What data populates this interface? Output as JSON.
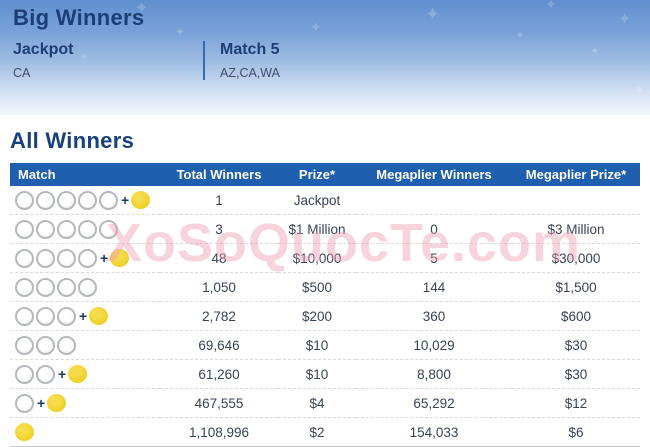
{
  "hero": {
    "title": "Big Winners",
    "cards": [
      {
        "label": "Jackpot",
        "value": "CA"
      },
      {
        "label": "Match 5",
        "value": "AZ,CA,WA"
      }
    ]
  },
  "all_winners": {
    "title": "All Winners",
    "columns": [
      "Match",
      "Total Winners",
      "Prize*",
      "Megaplier Winners",
      "Megaplier Prize*"
    ],
    "rows": [
      {
        "white_balls": 5,
        "mega_ball": true,
        "total_winners": "1",
        "prize": "Jackpot",
        "megaplier_winners": "",
        "megaplier_prize": ""
      },
      {
        "white_balls": 5,
        "mega_ball": false,
        "total_winners": "3",
        "prize": "$1 Million",
        "megaplier_winners": "0",
        "megaplier_prize": "$3 Million"
      },
      {
        "white_balls": 4,
        "mega_ball": true,
        "total_winners": "48",
        "prize": "$10,000",
        "megaplier_winners": "5",
        "megaplier_prize": "$30,000"
      },
      {
        "white_balls": 4,
        "mega_ball": false,
        "total_winners": "1,050",
        "prize": "$500",
        "megaplier_winners": "144",
        "megaplier_prize": "$1,500"
      },
      {
        "white_balls": 3,
        "mega_ball": true,
        "total_winners": "2,782",
        "prize": "$200",
        "megaplier_winners": "360",
        "megaplier_prize": "$600"
      },
      {
        "white_balls": 3,
        "mega_ball": false,
        "total_winners": "69,646",
        "prize": "$10",
        "megaplier_winners": "10,029",
        "megaplier_prize": "$30"
      },
      {
        "white_balls": 2,
        "mega_ball": true,
        "total_winners": "61,260",
        "prize": "$10",
        "megaplier_winners": "8,800",
        "megaplier_prize": "$30"
      },
      {
        "white_balls": 1,
        "mega_ball": true,
        "total_winners": "467,555",
        "prize": "$4",
        "megaplier_winners": "65,292",
        "megaplier_prize": "$12"
      },
      {
        "white_balls": 0,
        "mega_ball": true,
        "total_winners": "1,108,996",
        "prize": "$2",
        "megaplier_winners": "154,033",
        "megaplier_prize": "$6"
      }
    ]
  },
  "watermark": "XoSoQuocTe.com",
  "icons": {
    "plus": "+",
    "star": "✦"
  },
  "colors": {
    "header_bg": "#1e5fb0",
    "heading_text": "#1c3e75",
    "hero_gradient_top": "#6090cf",
    "white_ball_border": "#b5b8bc",
    "mega_ball_yellow": "#edd02a",
    "watermark_pink": "#f2a9bd"
  }
}
